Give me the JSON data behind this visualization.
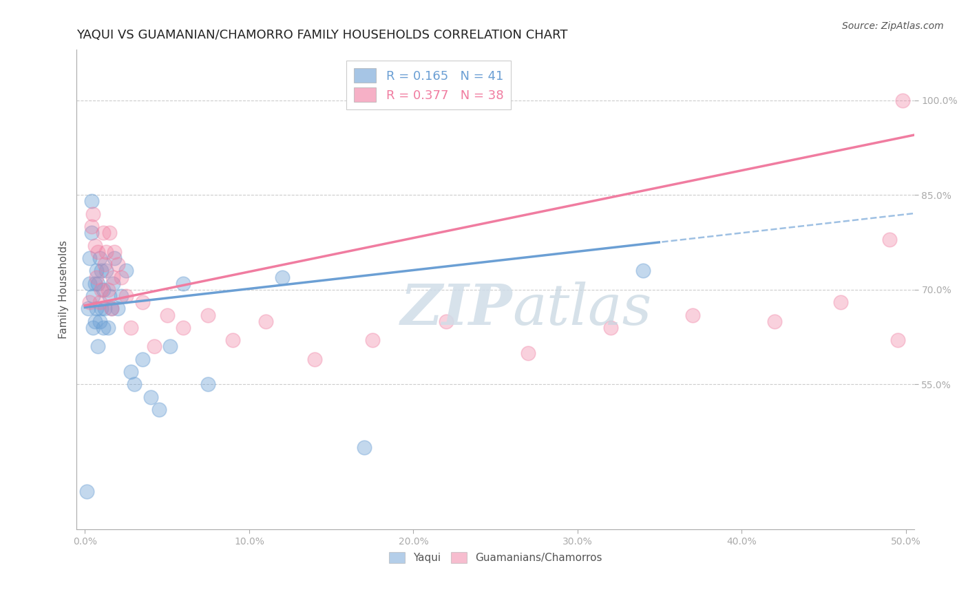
{
  "title": "YAQUI VS GUAMANIAN/CHAMORRO FAMILY HOUSEHOLDS CORRELATION CHART",
  "source": "Source: ZipAtlas.com",
  "ylabel": "Family Households",
  "xlim": [
    -0.005,
    0.505
  ],
  "ylim": [
    0.32,
    1.08
  ],
  "xticks": [
    0.0,
    0.1,
    0.2,
    0.3,
    0.4,
    0.5
  ],
  "xticklabels": [
    "0.0%",
    "10.0%",
    "20.0%",
    "30.0%",
    "40.0%",
    "50.0%"
  ],
  "ytick_positions": [
    0.55,
    0.7,
    0.85,
    1.0
  ],
  "yticklabels": [
    "55.0%",
    "70.0%",
    "85.0%",
    "100.0%"
  ],
  "blue_R": 0.165,
  "blue_N": 41,
  "pink_R": 0.377,
  "pink_N": 38,
  "blue_color": "#6B9FD4",
  "pink_color": "#F07CA0",
  "blue_label": "Yaqui",
  "pink_label": "Guamanians/Chamorros",
  "blue_scatter_x": [
    0.001,
    0.002,
    0.003,
    0.003,
    0.004,
    0.004,
    0.005,
    0.005,
    0.006,
    0.006,
    0.007,
    0.007,
    0.008,
    0.008,
    0.009,
    0.009,
    0.01,
    0.01,
    0.011,
    0.011,
    0.012,
    0.013,
    0.014,
    0.015,
    0.016,
    0.017,
    0.018,
    0.02,
    0.022,
    0.025,
    0.028,
    0.03,
    0.035,
    0.04,
    0.045,
    0.052,
    0.06,
    0.075,
    0.12,
    0.17,
    0.34
  ],
  "blue_scatter_y": [
    0.38,
    0.67,
    0.71,
    0.75,
    0.79,
    0.84,
    0.64,
    0.69,
    0.65,
    0.71,
    0.67,
    0.73,
    0.61,
    0.71,
    0.65,
    0.75,
    0.67,
    0.73,
    0.64,
    0.7,
    0.67,
    0.73,
    0.64,
    0.69,
    0.67,
    0.71,
    0.75,
    0.67,
    0.69,
    0.73,
    0.57,
    0.55,
    0.59,
    0.53,
    0.51,
    0.61,
    0.71,
    0.55,
    0.72,
    0.45,
    0.73
  ],
  "pink_scatter_x": [
    0.003,
    0.004,
    0.005,
    0.006,
    0.007,
    0.008,
    0.009,
    0.01,
    0.011,
    0.012,
    0.013,
    0.014,
    0.015,
    0.016,
    0.017,
    0.018,
    0.02,
    0.022,
    0.025,
    0.028,
    0.035,
    0.042,
    0.05,
    0.06,
    0.075,
    0.09,
    0.11,
    0.14,
    0.175,
    0.22,
    0.27,
    0.32,
    0.37,
    0.42,
    0.46,
    0.49,
    0.495,
    0.498
  ],
  "pink_scatter_y": [
    0.68,
    0.8,
    0.82,
    0.77,
    0.72,
    0.76,
    0.68,
    0.7,
    0.79,
    0.74,
    0.76,
    0.7,
    0.79,
    0.67,
    0.72,
    0.76,
    0.74,
    0.72,
    0.69,
    0.64,
    0.68,
    0.61,
    0.66,
    0.64,
    0.66,
    0.62,
    0.65,
    0.59,
    0.62,
    0.65,
    0.6,
    0.64,
    0.66,
    0.65,
    0.68,
    0.78,
    0.62,
    1.0
  ],
  "background_color": "#FFFFFF",
  "grid_color": "#CCCCCC",
  "title_fontsize": 13,
  "axis_label_fontsize": 11,
  "tick_fontsize": 10,
  "legend_fontsize": 13
}
